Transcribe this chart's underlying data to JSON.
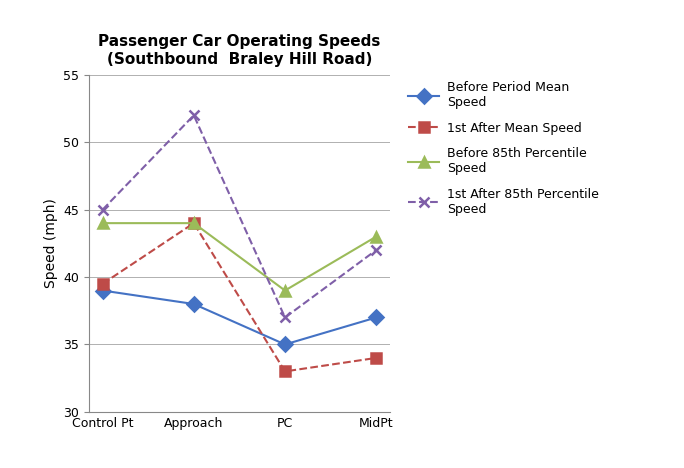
{
  "title_line1": "Passenger Car Operating Speeds",
  "title_line2": "(Southbound  Braley Hill Road)",
  "xlabel": "",
  "ylabel": "Speed (mph)",
  "ylim": [
    30,
    55
  ],
  "yticks": [
    30,
    35,
    40,
    45,
    50,
    55
  ],
  "categories": [
    "Control Pt",
    "Approach",
    "PC",
    "MidPt"
  ],
  "series": {
    "before_mean": {
      "values": [
        39.0,
        38.0,
        35.0,
        37.0
      ],
      "color": "#4472C4",
      "marker": "D",
      "linestyle": "-",
      "label": "Before Period Mean\nSpeed"
    },
    "after_mean": {
      "values": [
        39.5,
        44.0,
        33.0,
        34.0
      ],
      "color": "#BE4B48",
      "marker": "s",
      "linestyle": "--",
      "label": "1st After Mean Speed"
    },
    "before_85th": {
      "values": [
        44.0,
        44.0,
        39.0,
        43.0
      ],
      "color": "#9BBB59",
      "marker": "^",
      "linestyle": "-",
      "label": "Before 85th Percentile\nSpeed"
    },
    "after_85th": {
      "values": [
        45.0,
        52.0,
        37.0,
        42.0
      ],
      "color": "#7F5FA8",
      "marker": "x",
      "linestyle": "--",
      "label": "1st After 85th Percentile\nSpeed"
    }
  },
  "title_fontsize": 11,
  "axis_label_fontsize": 10,
  "tick_fontsize": 9,
  "legend_fontsize": 9,
  "background_color": "#ffffff",
  "grid_color": "#b0b0b0"
}
